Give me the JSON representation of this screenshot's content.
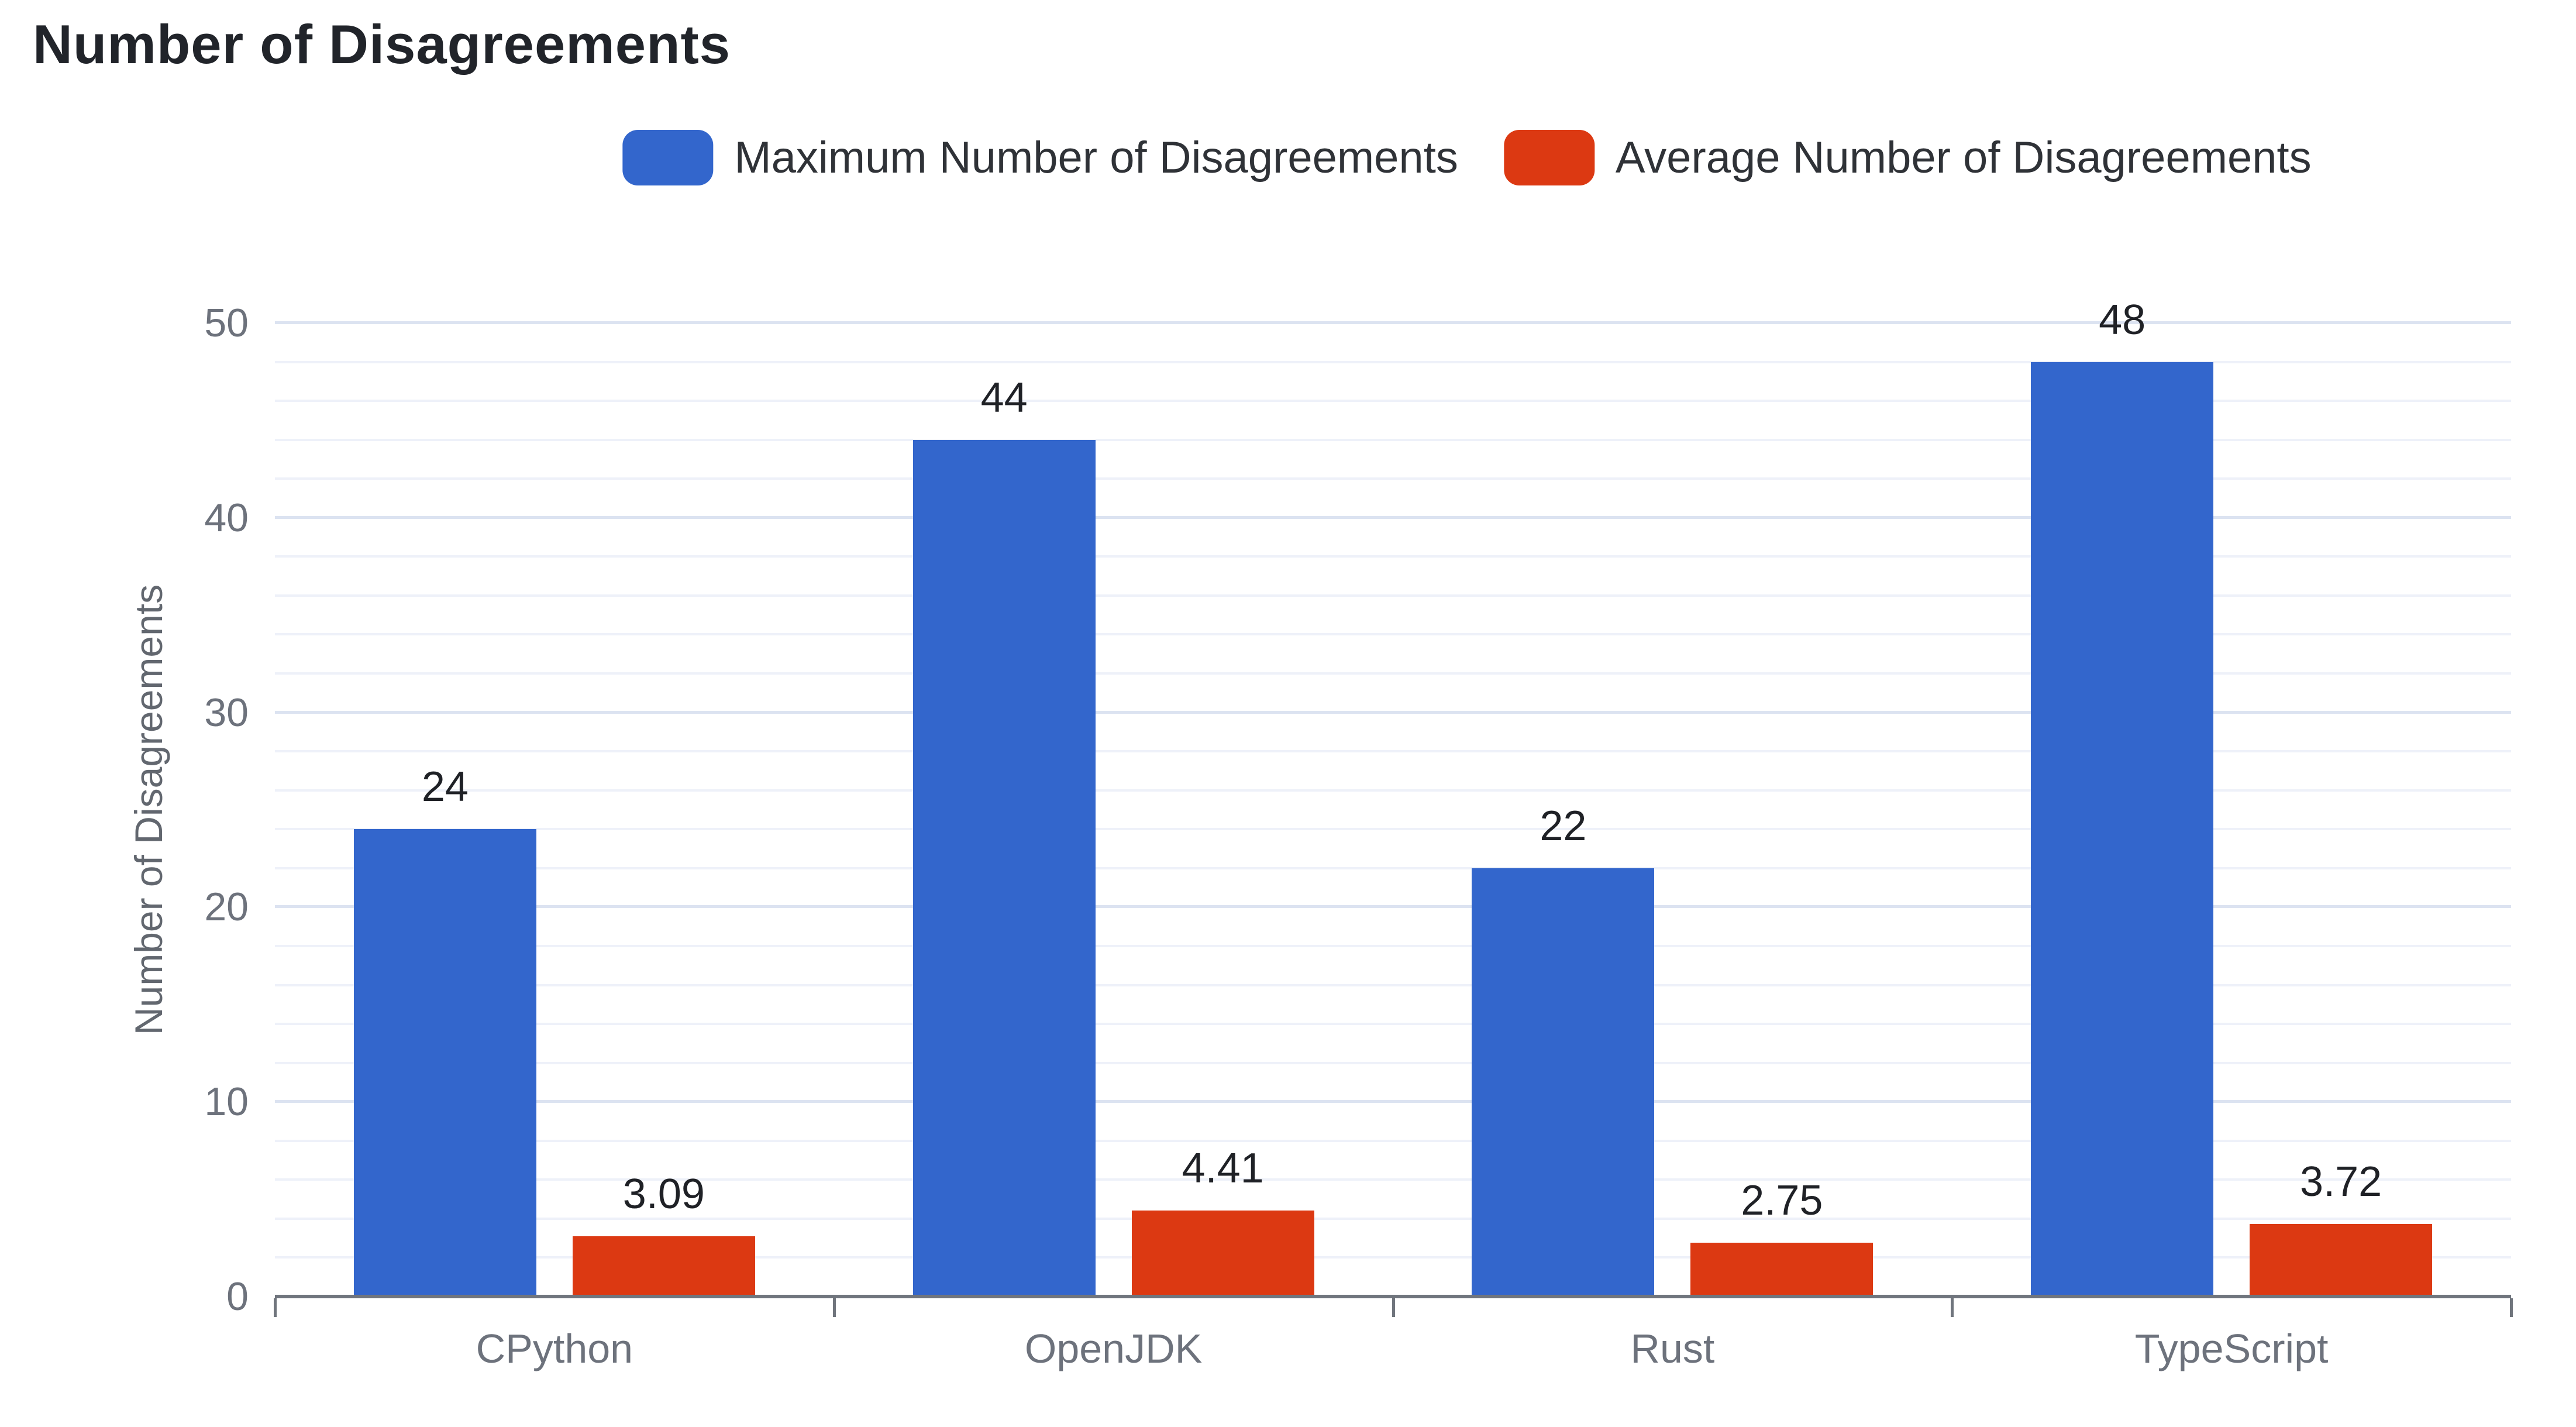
{
  "chart_data": {
    "type": "bar",
    "title": "Number of Disagreements",
    "categories": [
      "CPython",
      "OpenJDK",
      "Rust",
      "TypeScript"
    ],
    "series": [
      {
        "name": "Maximum Number of Disagreements",
        "color": "#3366cc",
        "values": [
          24,
          44,
          22,
          48
        ],
        "data_labels": [
          "24",
          "44",
          "22",
          "48"
        ]
      },
      {
        "name": "Average Number of Disagreements",
        "color": "#dc3912",
        "values": [
          3.09,
          4.41,
          2.75,
          3.72
        ],
        "data_labels": [
          "3.09",
          "4.41",
          "2.75",
          "3.72"
        ]
      }
    ],
    "xlabel": "",
    "ylabel": "Number of Disagreements",
    "ylim": [
      0,
      50
    ],
    "yticks": [
      0,
      10,
      20,
      30,
      40,
      50
    ],
    "minor_gridline_step": 2,
    "grid": true,
    "legend_position": "top",
    "annotations": "value labels shown above each bar"
  },
  "colors": {
    "title_text": "#21242a",
    "legend_text": "#2f3237",
    "axis_tick_text": "#6d727c",
    "axis_title_text": "#62676f",
    "annotation_text": "#1f2126",
    "major_gridline": "#dce3f1",
    "minor_gridline": "#eef1f9",
    "baseline_axis": "#70757d",
    "background": "#ffffff"
  }
}
